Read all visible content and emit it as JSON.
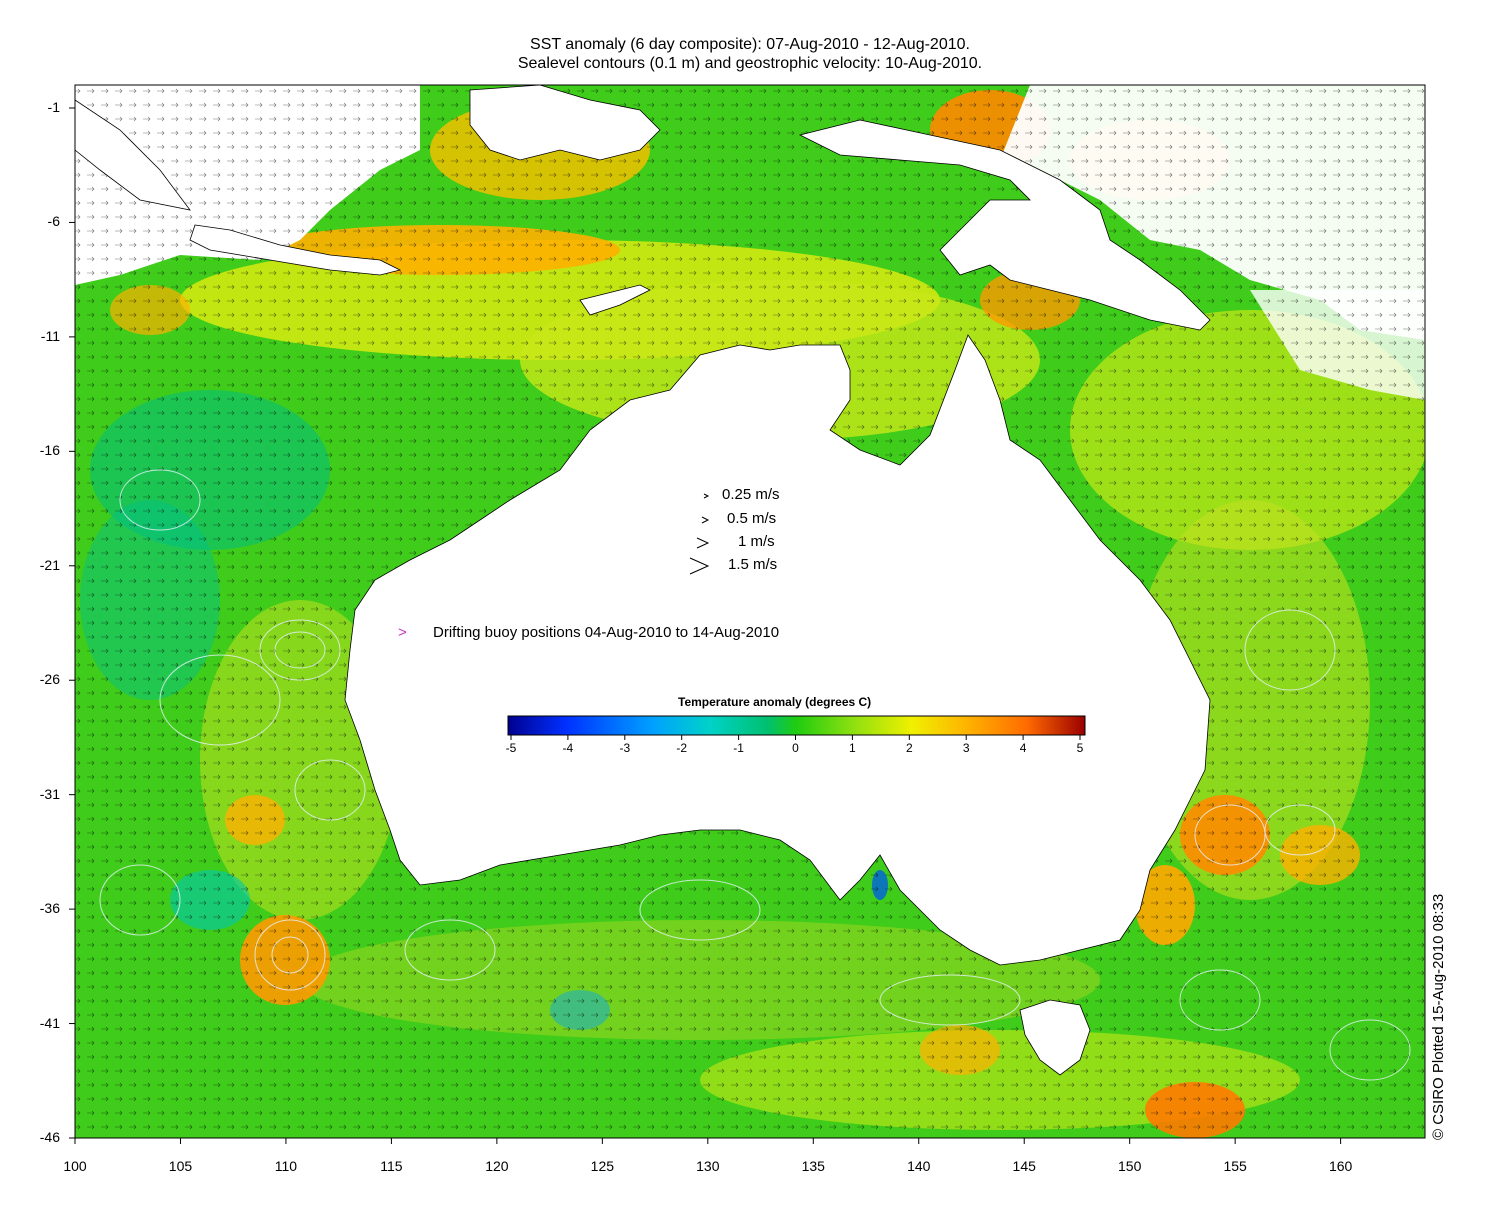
{
  "title_line1": "SST anomaly (6 day composite): 07-Aug-2010 - 12-Aug-2010.",
  "title_line2": "Sealevel contours (0.1 m) and geostrophic velocity: 10-Aug-2010.",
  "map": {
    "lon_range": [
      100,
      164
    ],
    "lat_range": [
      -46,
      -1
    ],
    "lat_ticks": [
      -1,
      -6,
      -11,
      -16,
      -21,
      -26,
      -31,
      -36,
      -41,
      -46
    ],
    "lon_ticks": [
      100,
      105,
      110,
      115,
      120,
      125,
      130,
      135,
      140,
      145,
      150,
      155,
      160
    ],
    "lat_tick_labels": [
      "-1",
      "-6",
      "-11",
      "-16",
      "-21",
      "-26",
      "-31",
      "-36",
      "-41",
      "-46"
    ],
    "lon_tick_labels": [
      "100",
      "105",
      "110",
      "115",
      "120",
      "125",
      "130",
      "135",
      "140",
      "145",
      "150",
      "155",
      "160"
    ],
    "background_color": "#3fcc1a"
  },
  "velocity_scale": {
    "entries": [
      {
        "label": "0.25 m/s",
        "speed": 0.25
      },
      {
        "label": "0.5 m/s",
        "speed": 0.5
      },
      {
        "label": "1 m/s",
        "speed": 1
      },
      {
        "label": "1.5 m/s",
        "speed": 1.5
      }
    ]
  },
  "buoy_legend": {
    "symbol": ">",
    "label": "Drifting buoy positions 04-Aug-2010 to 14-Aug-2010",
    "color": "#cc33cc"
  },
  "colorbar": {
    "title": "Temperature anomaly (degrees C)",
    "range": [
      -5,
      5
    ],
    "tick_labels": [
      "-5",
      "-4",
      "-3",
      "-2",
      "-1",
      "0",
      "1",
      "2",
      "3",
      "4",
      "5"
    ],
    "colors": [
      "#00008f",
      "#0030ff",
      "#00a0ff",
      "#00d2c8",
      "#00c070",
      "#20cc10",
      "#90e010",
      "#f0f000",
      "#ffb000",
      "#ff6a00",
      "#9a0000"
    ]
  },
  "credit": "© CSIRO Plotted 15-Aug-2010 08:33"
}
